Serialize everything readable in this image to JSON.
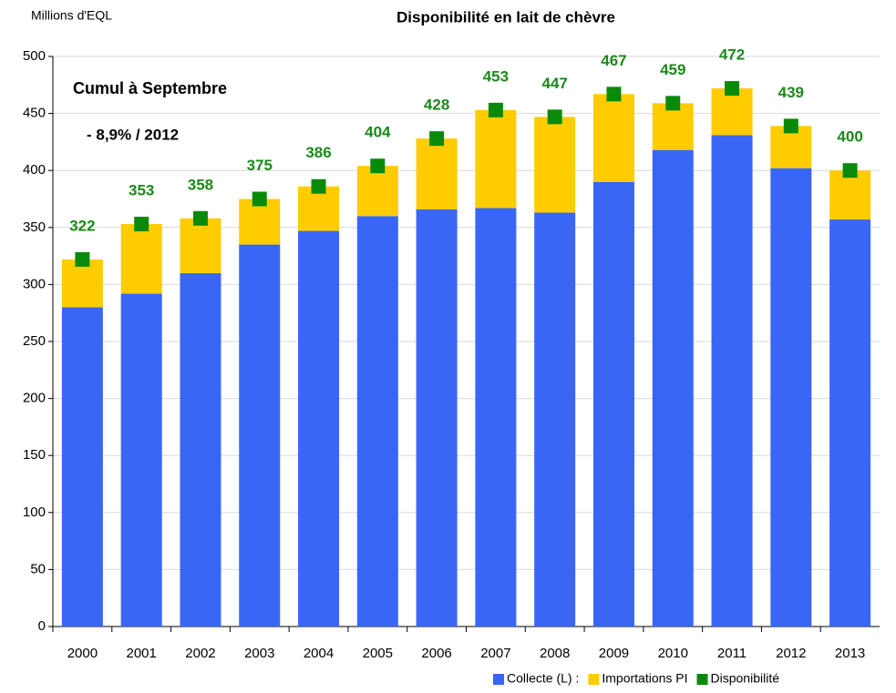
{
  "chart_data": {
    "type": "bar",
    "stacked": true,
    "title": "Disponibilité en lait de chèvre",
    "y_label": "Millions d'EQL",
    "annotations": [
      "Cumul à Septembre",
      "- 8,9% / 2012"
    ],
    "categories": [
      "2000",
      "2001",
      "2002",
      "2003",
      "2004",
      "2005",
      "2006",
      "2007",
      "2008",
      "2009",
      "2010",
      "2011",
      "2012",
      "2013"
    ],
    "series": [
      {
        "name": "Collecte (L) :",
        "color": "#3a66f5",
        "values": [
          280,
          292,
          310,
          335,
          347,
          360,
          366,
          367,
          363,
          390,
          418,
          431,
          402,
          357
        ]
      },
      {
        "name": "Importations PI",
        "color": "#ffcc00",
        "values": [
          42,
          61,
          48,
          40,
          39,
          44,
          62,
          86,
          84,
          77,
          41,
          41,
          37,
          43
        ]
      },
      {
        "name": "Disponibilité",
        "type": "scatter",
        "color": "#0a8a0a",
        "label_color": "#1a8a1a",
        "values": [
          322,
          353,
          358,
          375,
          386,
          404,
          428,
          453,
          447,
          467,
          459,
          472,
          439,
          400
        ]
      }
    ],
    "ylim": [
      0,
      500
    ],
    "yticks": [
      0,
      50,
      100,
      150,
      200,
      250,
      300,
      350,
      400,
      450,
      500
    ],
    "grid": true,
    "legend": "bottom"
  }
}
